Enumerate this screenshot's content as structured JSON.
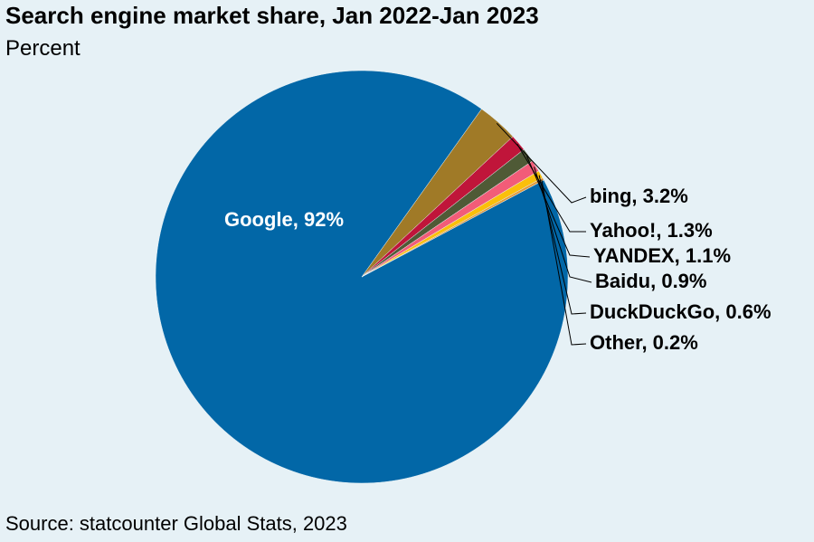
{
  "title": "Search engine market share, Jan 2022-Jan 2023",
  "subtitle": "Percent",
  "source": "Source: statcounter Global Stats, 2023",
  "chart_data": {
    "type": "pie",
    "title": "Search engine market share, Jan 2022-Jan 2023",
    "unit": "Percent",
    "slices": [
      {
        "name": "Google",
        "value": 92.0,
        "label": "Google, 92%",
        "color": "#0267a7"
      },
      {
        "name": "bing",
        "value": 3.2,
        "label": "bing, 3.2%",
        "color": "#a07a27"
      },
      {
        "name": "Yahoo!",
        "value": 1.3,
        "label": "Yahoo!, 1.3%",
        "color": "#c0153a"
      },
      {
        "name": "YANDEX",
        "value": 1.1,
        "label": "YANDEX, 1.1%",
        "color": "#4f5a36"
      },
      {
        "name": "Baidu",
        "value": 0.9,
        "label": "Baidu, 0.9%",
        "color": "#f25c78"
      },
      {
        "name": "DuckDuckGo",
        "value": 0.6,
        "label": "DuckDuckGo, 0.6%",
        "color": "#fbbf0a"
      },
      {
        "name": "Other",
        "value": 0.2,
        "label": "Other, 0.2%",
        "color": "#e39a3a"
      }
    ]
  }
}
